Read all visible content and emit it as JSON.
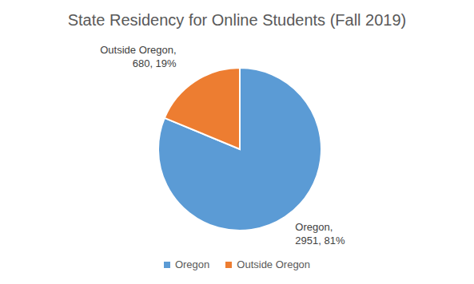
{
  "chart_data": {
    "type": "pie",
    "title": "State Residency for Online Students (Fall 2019)",
    "categories": [
      "Oregon",
      "Outside Oregon"
    ],
    "values": [
      2951,
      680
    ],
    "colors": [
      "#5b9bd5",
      "#ed7d31"
    ],
    "data_labels": true,
    "value_labels": [
      "Oregon, 2951, 81%",
      "Outside Oregon, 680, 19%"
    ],
    "legend": "bottom"
  }
}
